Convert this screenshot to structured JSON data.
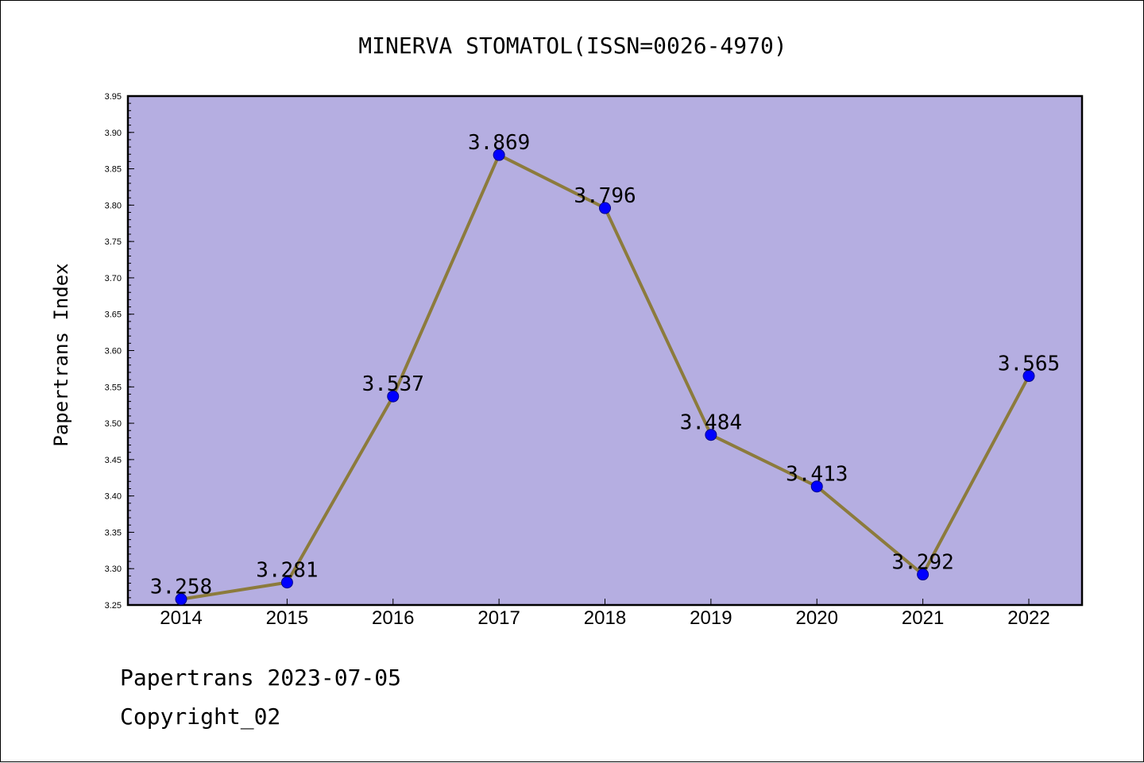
{
  "chart_data": {
    "type": "line",
    "title": "MINERVA STOMATOL(ISSN=0026-4970)",
    "xlabel": "",
    "ylabel": "Papertrans Index",
    "categories": [
      "2014",
      "2015",
      "2016",
      "2017",
      "2018",
      "2019",
      "2020",
      "2021",
      "2022"
    ],
    "series": [
      {
        "values": [
          3.258,
          3.281,
          3.537,
          3.869,
          3.796,
          3.484,
          3.413,
          3.292,
          3.565
        ],
        "data_labels": [
          "3.258",
          "3.281",
          "3.537",
          "3.869",
          "3.796",
          "3.484",
          "3.413",
          "3.292",
          "3.565"
        ]
      }
    ],
    "ylim": [
      3.25,
      3.95
    ],
    "yticks": [
      "3.25",
      "3.30",
      "3.35",
      "3.40",
      "3.45",
      "3.50",
      "3.55",
      "3.60",
      "3.65",
      "3.70",
      "3.75",
      "3.80",
      "3.85",
      "3.90",
      "3.95"
    ],
    "grid": false,
    "legend": "none"
  },
  "colors": {
    "plot_background": "#b5aee1",
    "line": "#8c7b3c",
    "marker": "#0000ff",
    "marker_edge": "#00008b",
    "axis": "#000000",
    "text": "#000000"
  },
  "footer": {
    "source": "Papertrans 2023-07-05",
    "copyright": "Copyright_02"
  }
}
